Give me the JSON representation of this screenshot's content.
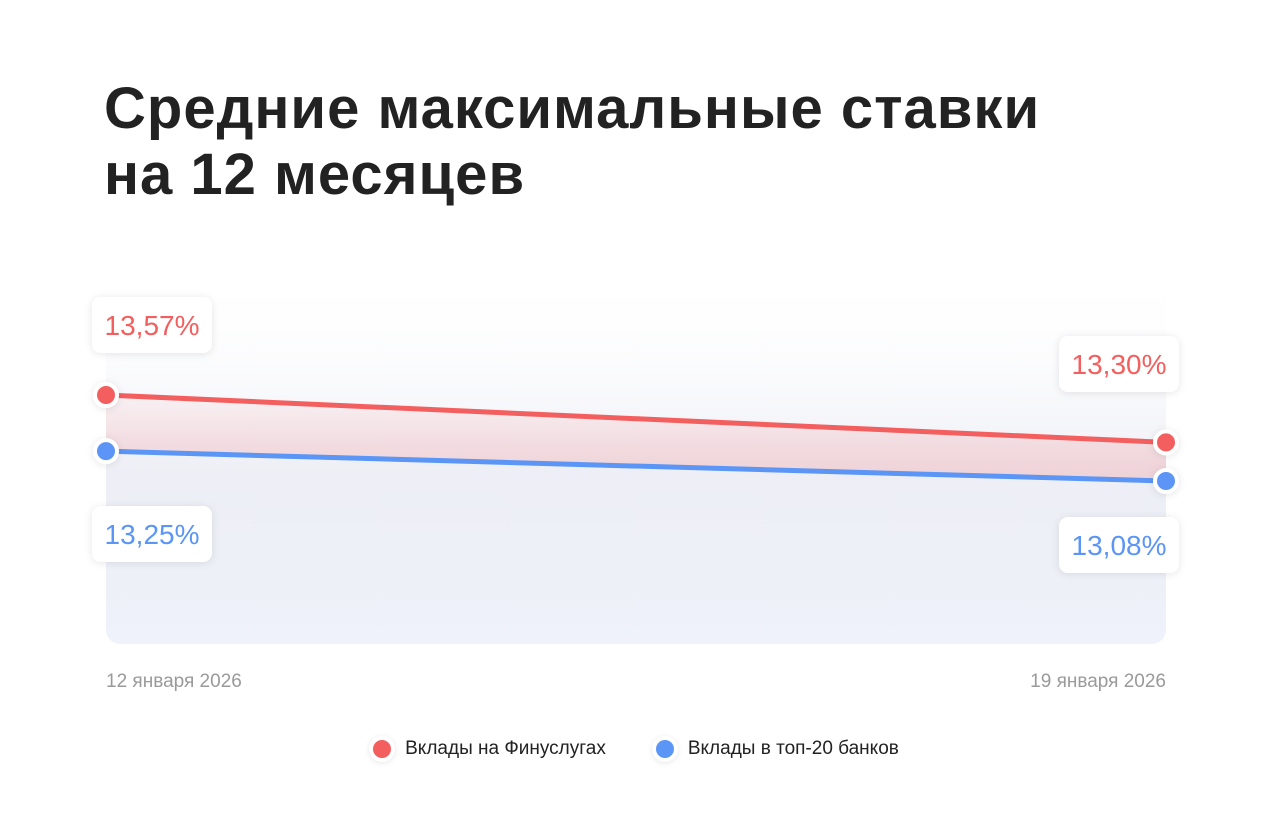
{
  "title": {
    "line1": "Средние максимальные ставки",
    "line2": "на 12 месяцев"
  },
  "colors": {
    "finuslugi": "#f35e5e",
    "top20": "#5b95f5",
    "text": "#222222",
    "axis_text": "#9a9a9a"
  },
  "chart_data": {
    "type": "line",
    "title": "Средние максимальные ставки на 12 месяцев",
    "x": [
      "12 января 2026",
      "19 января 2026"
    ],
    "series": [
      {
        "name": "Вклады на Финуслугах",
        "values": [
          13.57,
          13.3
        ],
        "labels": [
          "13,57%",
          "13,30%"
        ],
        "color": "#f35e5e"
      },
      {
        "name": "Вклады в топ-20 банков",
        "values": [
          13.25,
          13.08
        ],
        "labels": [
          "13,25%",
          "13,08%"
        ],
        "color": "#5b95f5"
      }
    ],
    "xlabel": "",
    "ylabel": "",
    "grid": false,
    "legend": "bottom-center"
  }
}
